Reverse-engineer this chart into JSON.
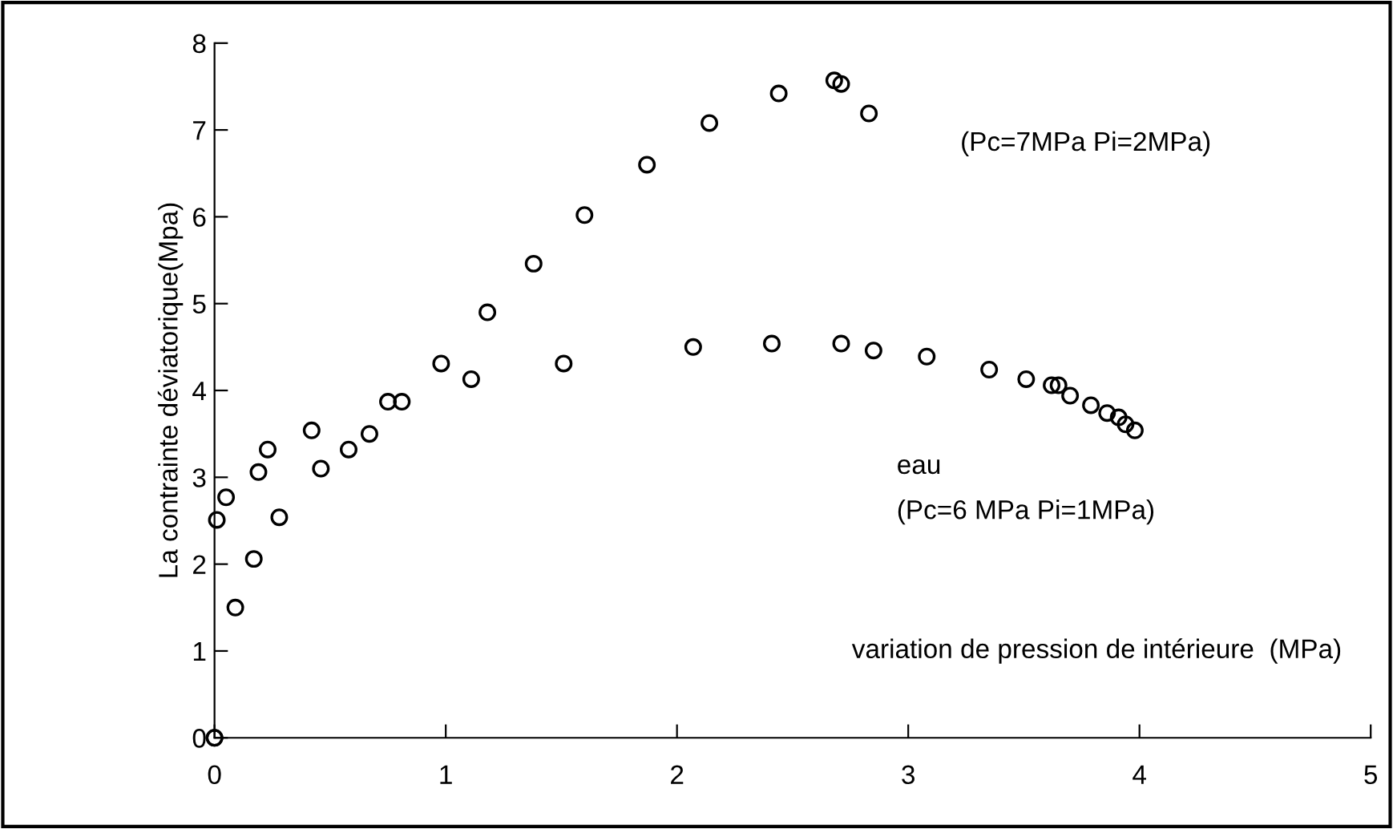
{
  "chart_data": {
    "type": "scatter",
    "ylabel": "La contrainte déviatorique(Mpa)",
    "xlabel": "variation de pression de intérieure  (MPa)",
    "series": [
      {
        "color": "#000000",
        "x": [
          0,
          0.05,
          0.09,
          0.19,
          0.23,
          0.42,
          0.75,
          0.98,
          1.18,
          1.38,
          1.6,
          1.87,
          2.14,
          2.44,
          2.68,
          2.71,
          2.83
        ],
        "values": [
          0,
          2.77,
          null,
          3.06,
          3.32,
          3.54,
          3.87,
          4.31,
          4.9,
          5.46,
          6.02,
          6.6,
          7.08,
          7.42,
          7.57,
          7.53,
          7.19
        ]
      },
      {
        "name": "eau",
        "color": "#000000",
        "x": [
          0,
          0.01,
          0.09,
          0.17,
          0.28,
          0.46,
          0.58,
          0.67,
          0.81,
          1.11,
          1.51,
          2.07,
          2.41,
          2.71,
          2.85,
          3.08,
          3.35,
          3.51,
          3.62,
          3.65,
          3.7,
          3.79,
          3.83,
          3.86,
          3.89,
          3.91,
          3.94,
          3.98
        ],
        "values": [
          0,
          2.51,
          1.5,
          2.06,
          2.54,
          3.1,
          3.32,
          3.5,
          3.87,
          4.13,
          4.31,
          4.5,
          4.54,
          4.54,
          4.46,
          4.39,
          4.24,
          4.13,
          4.06,
          4.06,
          3.94,
          3.83,
          null,
          3.74,
          null,
          3.69,
          3.61,
          3.54
        ]
      }
    ],
    "annotations": [
      "(Pc=7MPa Pi=2MPa)",
      "(Pc=6 MPa Pi=1MPa)"
    ],
    "xlim": [
      0,
      5
    ],
    "xticks": [
      0,
      1,
      2,
      3,
      4,
      5
    ],
    "ylim": [
      0,
      8
    ],
    "yticks": [
      0,
      1,
      2,
      3,
      4,
      5,
      6,
      7,
      8
    ],
    "marker": "circle",
    "grid": false,
    "legend": false
  }
}
